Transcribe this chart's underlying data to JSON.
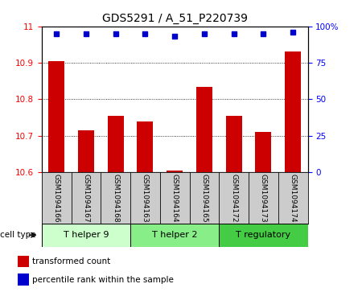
{
  "title": "GDS5291 / A_51_P220739",
  "samples": [
    "GSM1094166",
    "GSM1094167",
    "GSM1094168",
    "GSM1094163",
    "GSM1094164",
    "GSM1094165",
    "GSM1094172",
    "GSM1094173",
    "GSM1094174"
  ],
  "bar_values": [
    10.905,
    10.715,
    10.755,
    10.74,
    10.605,
    10.835,
    10.755,
    10.71,
    10.93
  ],
  "percentile_values": [
    95,
    95,
    95,
    95,
    93,
    95,
    95,
    95,
    96
  ],
  "ymin": 10.6,
  "ymax": 11.0,
  "yticks": [
    10.6,
    10.7,
    10.8,
    10.9,
    11
  ],
  "right_yticks": [
    0,
    25,
    50,
    75,
    100
  ],
  "bar_color": "#cc0000",
  "dot_color": "#0000cc",
  "bar_bottom": 10.6,
  "groups": [
    {
      "label": "T helper 9",
      "start": 0,
      "end": 3
    },
    {
      "label": "T helper 2",
      "start": 3,
      "end": 6
    },
    {
      "label": "T regulatory",
      "start": 6,
      "end": 9
    }
  ],
  "group_colors": [
    "#ccffcc",
    "#88ee88",
    "#44cc44"
  ],
  "cell_type_label": "cell type",
  "legend_bar_label": "transformed count",
  "legend_dot_label": "percentile rank within the sample",
  "title_fontsize": 10,
  "tick_fontsize": 7.5,
  "sample_fontsize": 6.5,
  "group_fontsize": 8
}
